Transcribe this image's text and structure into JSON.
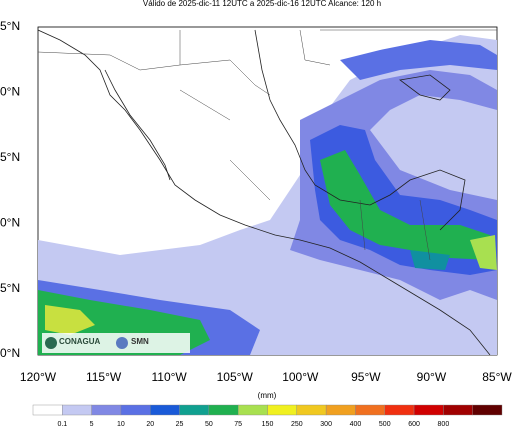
{
  "header": {
    "title": "Válido de 2025-dic-11 12UTC a 2025-dic-16 12UTC    Alcance: 120 h"
  },
  "map": {
    "lat_labels": [
      "5°N",
      "0°N",
      "5°N",
      "0°N",
      "5°N",
      "0°N"
    ],
    "lon_labels": [
      "120°W",
      "115°W",
      "110°W",
      "105°W",
      "100°W",
      "95°W",
      "90°W",
      "85°W"
    ],
    "logos": [
      "CONAGUA",
      "SMN"
    ]
  },
  "legend": {
    "unit": "(mm)",
    "labels": [
      "0.1",
      "5",
      "10",
      "20",
      "25",
      "50",
      "75",
      "150",
      "250",
      "300",
      "400",
      "500",
      "600",
      "800"
    ]
  }
}
